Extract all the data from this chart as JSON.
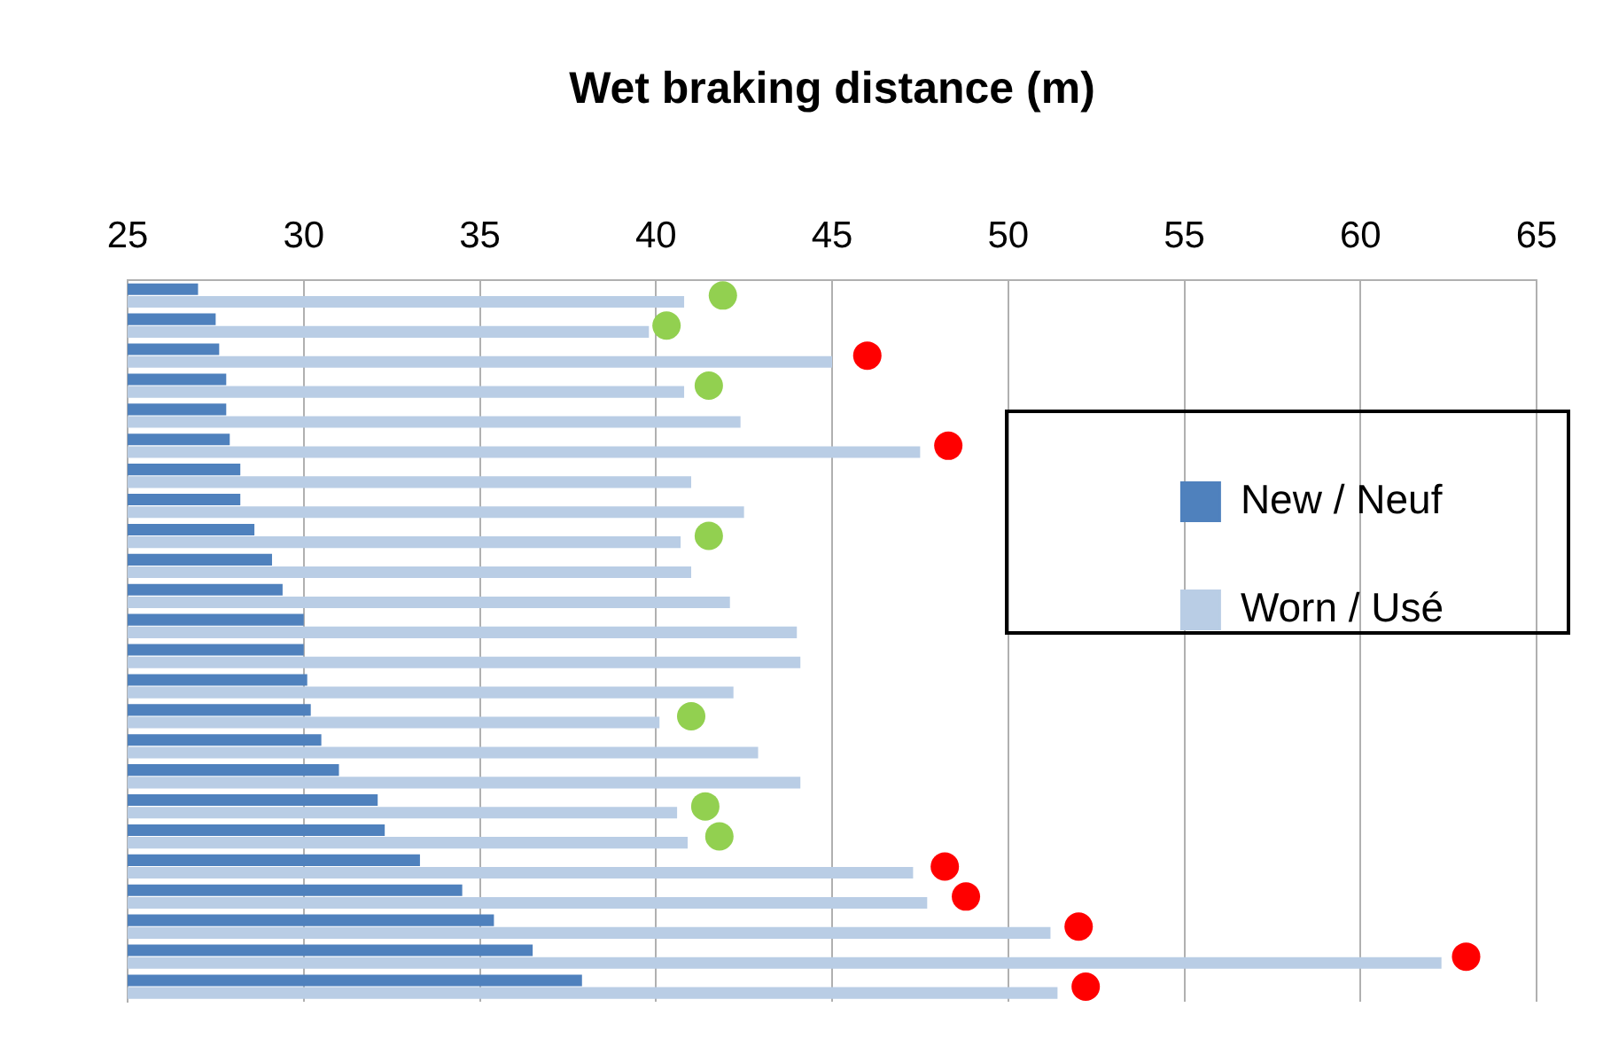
{
  "chart_data": {
    "type": "bar",
    "orientation": "horizontal",
    "title": "Wet braking distance (m)",
    "categories": [
      null,
      null,
      null,
      null,
      null,
      null,
      null,
      null,
      null,
      null,
      null,
      null,
      null,
      null,
      null,
      null,
      null,
      null,
      null,
      null,
      null,
      null,
      null,
      null
    ],
    "series": [
      {
        "name": "New / Neuf",
        "color": "#4f81bd",
        "values": [
          27.0,
          27.5,
          27.6,
          27.8,
          27.8,
          27.9,
          28.2,
          28.2,
          28.6,
          29.1,
          29.4,
          30.0,
          30.0,
          30.1,
          30.2,
          30.5,
          31.0,
          32.1,
          32.3,
          33.3,
          34.5,
          35.4,
          36.5,
          37.9
        ]
      },
      {
        "name": "Worn / Usé",
        "color": "#b9cde5",
        "values": [
          40.8,
          39.8,
          45.0,
          40.8,
          42.4,
          47.5,
          41.0,
          42.5,
          40.7,
          41.0,
          42.1,
          44.0,
          44.1,
          42.2,
          40.1,
          42.9,
          44.1,
          40.6,
          40.9,
          47.3,
          47.7,
          51.2,
          62.3,
          51.4
        ]
      },
      {
        "type": "scatter",
        "colors": [
          "#92d050",
          "#92d050",
          "#ff0000",
          "#92d050",
          null,
          "#ff0000",
          null,
          null,
          "#92d050",
          null,
          null,
          null,
          null,
          null,
          "#92d050",
          null,
          null,
          "#92d050",
          "#92d050",
          "#ff0000",
          "#ff0000",
          "#ff0000",
          "#ff0000",
          "#ff0000"
        ],
        "values": [
          41.9,
          40.3,
          46.0,
          41.5,
          null,
          48.3,
          null,
          null,
          41.5,
          null,
          null,
          null,
          null,
          null,
          41.0,
          null,
          null,
          41.4,
          41.8,
          48.2,
          48.8,
          52.0,
          63.0,
          52.2
        ]
      }
    ],
    "marker": "circle",
    "xlim": [
      25,
      65
    ],
    "xticks": [
      25,
      30,
      35,
      40,
      45,
      50,
      55,
      60,
      65
    ],
    "grid": "x",
    "legend": "right"
  }
}
